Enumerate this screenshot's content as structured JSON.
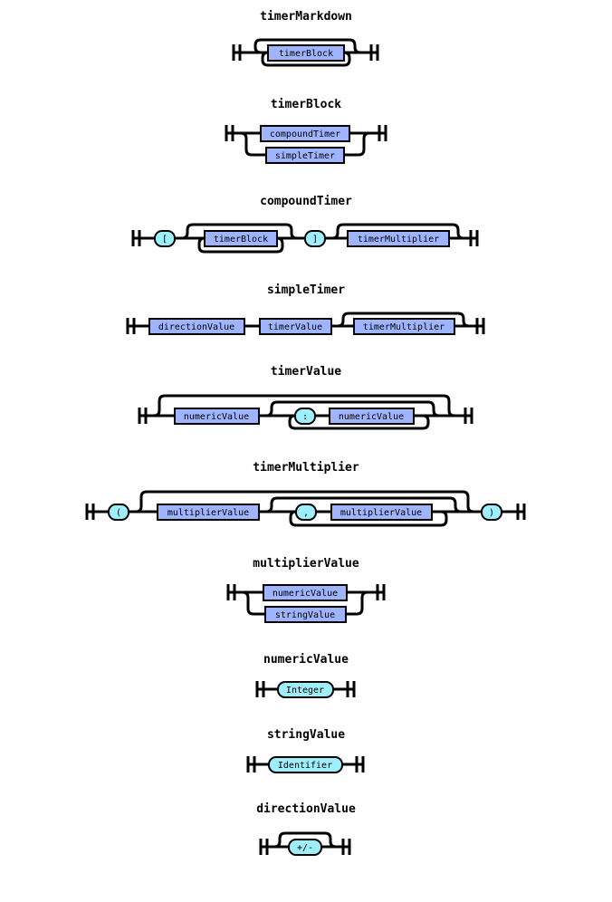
{
  "colors": {
    "nonterminal_fill": "#9fb4ff",
    "terminal_fill": "#9eeefb",
    "line": "#000000"
  },
  "rules": [
    {
      "id": "timerMarkdown",
      "title": "timerMarkdown",
      "nodes": [
        "timerBlock"
      ]
    },
    {
      "id": "timerBlock",
      "title": "timerBlock",
      "nodes": [
        "compoundTimer",
        "simpleTimer"
      ]
    },
    {
      "id": "compoundTimer",
      "title": "compoundTimer",
      "nodes": [
        "[",
        "timerBlock",
        "]",
        "timerMultiplier"
      ]
    },
    {
      "id": "simpleTimer",
      "title": "simpleTimer",
      "nodes": [
        "directionValue",
        "timerValue",
        "timerMultiplier"
      ]
    },
    {
      "id": "timerValue",
      "title": "timerValue",
      "nodes": [
        "numericValue",
        ":",
        "numericValue"
      ]
    },
    {
      "id": "timerMultiplier",
      "title": "timerMultiplier",
      "nodes": [
        "(",
        "multiplierValue",
        ",",
        "multiplierValue",
        ")"
      ]
    },
    {
      "id": "multiplierValue",
      "title": "multiplierValue",
      "nodes": [
        "numericValue",
        "stringValue"
      ]
    },
    {
      "id": "numericValue",
      "title": "numericValue",
      "nodes": [
        "Integer"
      ]
    },
    {
      "id": "stringValue",
      "title": "stringValue",
      "nodes": [
        "Identifier"
      ]
    },
    {
      "id": "directionValue",
      "title": "directionValue",
      "nodes": [
        "+/-"
      ]
    }
  ]
}
